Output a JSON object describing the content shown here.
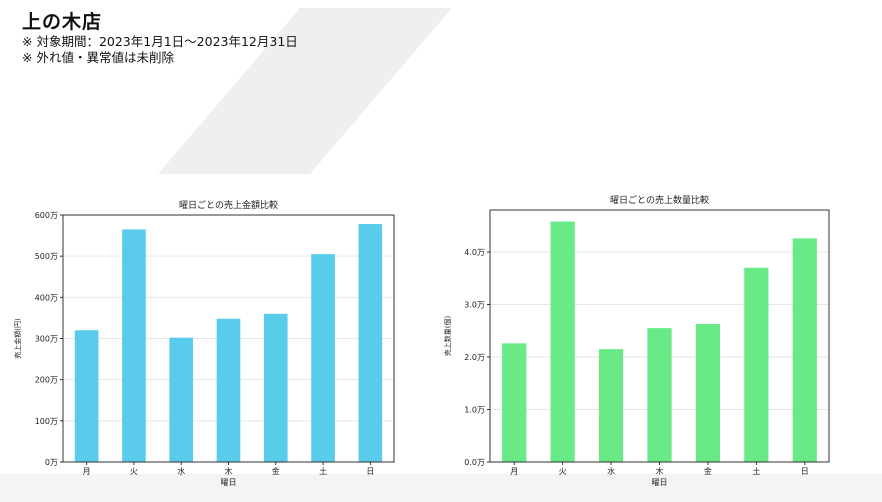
{
  "header": {
    "store_name": "上の木店",
    "period_note": "※ 対象期間：2023年1月1日〜2023年12月31日",
    "outlier_note": "※ 外れ値・異常値は未削除"
  },
  "colors": {
    "sales_bar": "#59CBEB",
    "qty_bar": "#69EA86",
    "background_shape": "#EFEFEF"
  },
  "chart_data": [
    {
      "type": "bar",
      "title": "曜日ごとの売上金額比較",
      "xlabel": "曜日",
      "ylabel": "売上金額(円)",
      "categories": [
        "月",
        "火",
        "水",
        "木",
        "金",
        "土",
        "日"
      ],
      "values": [
        3200000,
        5650000,
        3020000,
        3480000,
        3600000,
        5050000,
        5780000
      ],
      "ylim": [
        0,
        6000000
      ],
      "yticks": [
        0,
        1000000,
        2000000,
        3000000,
        4000000,
        5000000,
        6000000
      ],
      "ytick_labels": [
        "0万",
        "100万",
        "200万",
        "300万",
        "400万",
        "500万",
        "600万"
      ],
      "grid": true,
      "legend": "none"
    },
    {
      "type": "bar",
      "title": "曜日ごとの売上数量比較",
      "xlabel": "曜日",
      "ylabel": "売上数量(個)",
      "categories": [
        "月",
        "火",
        "水",
        "木",
        "金",
        "土",
        "日"
      ],
      "values": [
        22600,
        45800,
        21500,
        25500,
        26300,
        37000,
        42600
      ],
      "ylim": [
        0,
        48000
      ],
      "yticks": [
        0,
        10000,
        20000,
        30000,
        40000
      ],
      "ytick_labels": [
        "0.0万",
        "1.0万",
        "2.0万",
        "3.0万",
        "4.0万"
      ],
      "grid": true,
      "legend": "none"
    }
  ]
}
